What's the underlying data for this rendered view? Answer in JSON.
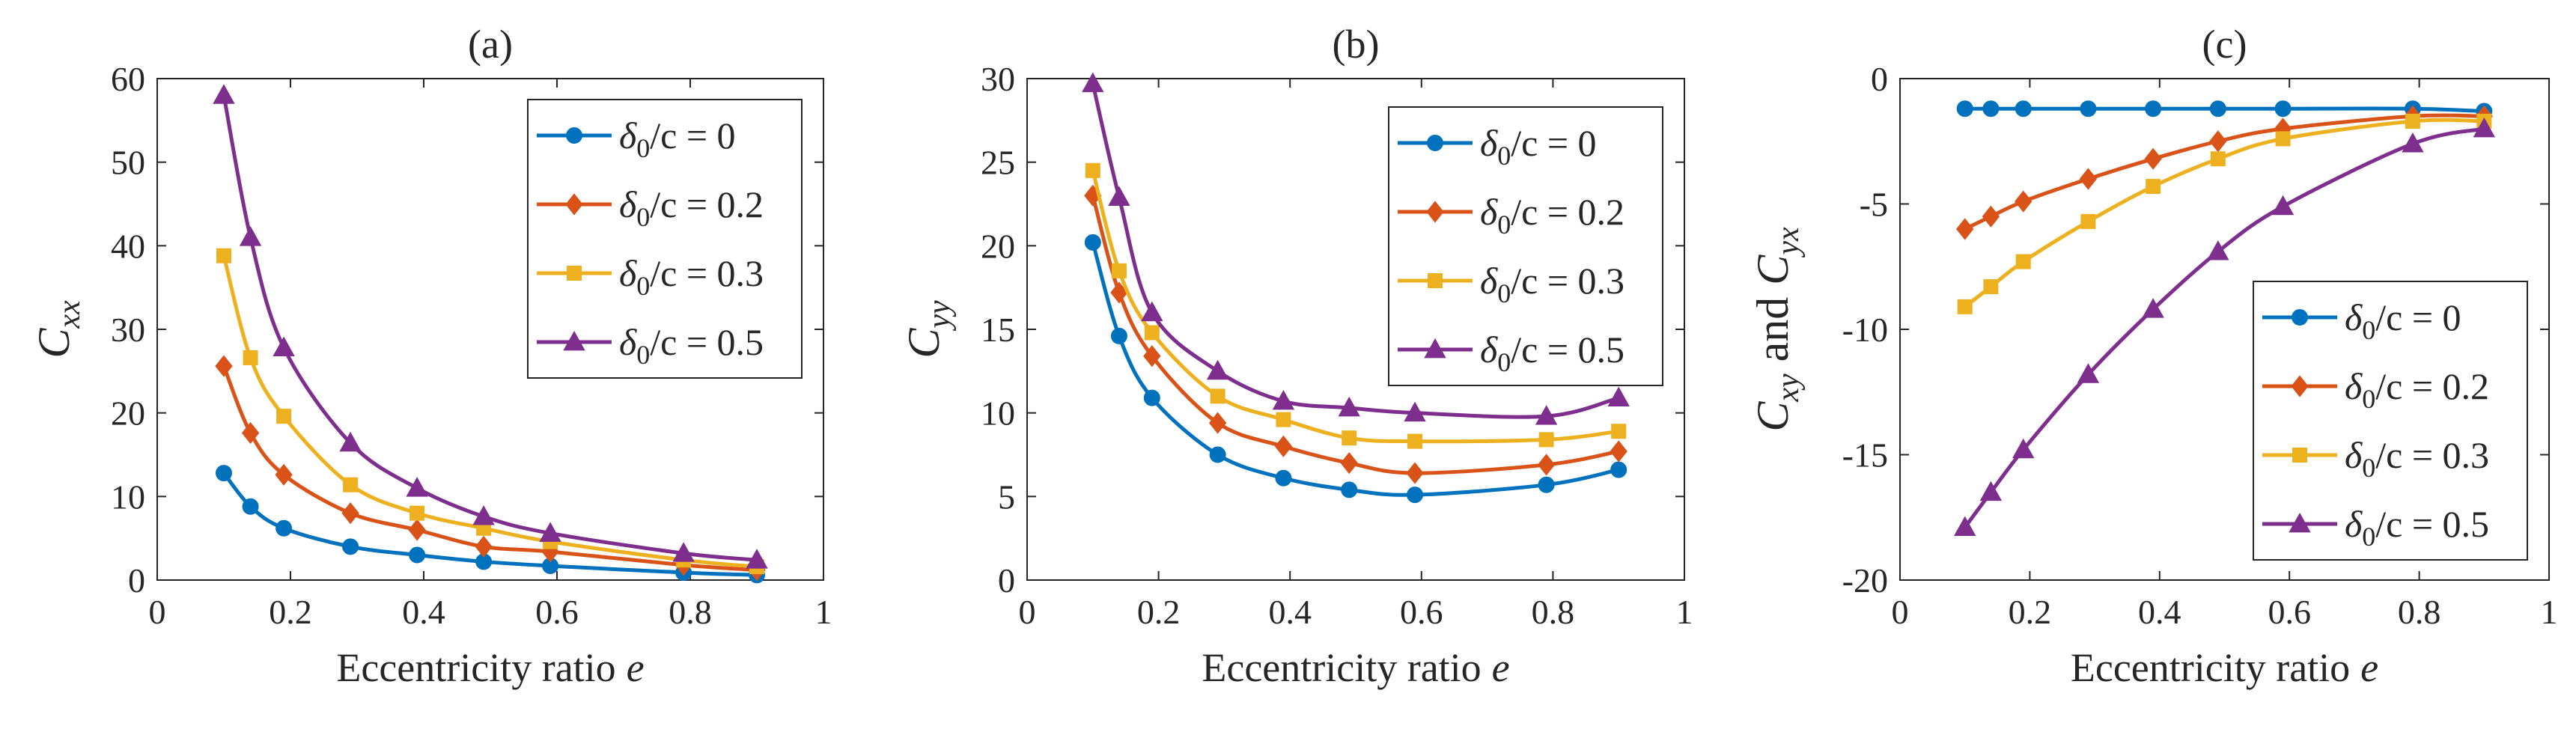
{
  "chart_data": [
    {
      "type": "line",
      "title": "(a)",
      "xlabel": "Eccentricity ratio",
      "xlabel_var": "e",
      "ylabel_main": "C",
      "ylabel_sub": "xx",
      "xlim": [
        0,
        1
      ],
      "ylim": [
        0,
        60
      ],
      "xticks": [
        0,
        0.2,
        0.4,
        0.6,
        0.8,
        1
      ],
      "xtick_labels": [
        "0",
        "0.2",
        "0.4",
        "0.6",
        "0.8",
        "1"
      ],
      "yticks": [
        0,
        10,
        20,
        30,
        40,
        50,
        60
      ],
      "ytick_labels": [
        "0",
        "10",
        "20",
        "30",
        "40",
        "50",
        "60"
      ],
      "legend_position": "top-right",
      "x": [
        0.1,
        0.14,
        0.19,
        0.29,
        0.39,
        0.49,
        0.59,
        0.79,
        0.9
      ],
      "series": [
        {
          "name": "δ0/c = 0",
          "values": [
            12.8,
            8.8,
            6.2,
            4.0,
            3.0,
            2.2,
            1.7,
            0.9,
            0.6
          ]
        },
        {
          "name": "δ0/c = 0.2",
          "values": [
            25.6,
            17.6,
            12.6,
            8.0,
            6.0,
            4.0,
            3.4,
            1.8,
            1.2
          ]
        },
        {
          "name": "δ0/c = 0.3",
          "values": [
            38.8,
            26.6,
            19.6,
            11.4,
            8.0,
            6.2,
            4.6,
            2.4,
            1.6
          ]
        },
        {
          "name": "δ0/c = 0.5",
          "values": [
            58.0,
            41.0,
            27.8,
            16.4,
            11.0,
            7.6,
            5.6,
            3.2,
            2.4
          ]
        }
      ]
    },
    {
      "type": "line",
      "title": "(b)",
      "xlabel": "Eccentricity ratio",
      "xlabel_var": "e",
      "ylabel_main": "C",
      "ylabel_sub": "yy",
      "xlim": [
        0,
        1
      ],
      "ylim": [
        0,
        30
      ],
      "xticks": [
        0,
        0.2,
        0.4,
        0.6,
        0.8,
        1
      ],
      "xtick_labels": [
        "0",
        "0.2",
        "0.4",
        "0.6",
        "0.8",
        "1"
      ],
      "yticks": [
        0,
        5,
        10,
        15,
        20,
        25,
        30
      ],
      "ytick_labels": [
        "0",
        "5",
        "10",
        "15",
        "20",
        "25",
        "30"
      ],
      "legend_position": "top-right",
      "x": [
        0.1,
        0.14,
        0.19,
        0.29,
        0.39,
        0.49,
        0.59,
        0.79,
        0.9
      ],
      "series": [
        {
          "name": "δ0/c = 0",
          "values": [
            20.2,
            14.6,
            10.9,
            7.5,
            6.1,
            5.4,
            5.1,
            5.7,
            6.6
          ]
        },
        {
          "name": "δ0/c = 0.2",
          "values": [
            23.0,
            17.2,
            13.4,
            9.4,
            8.0,
            7.0,
            6.4,
            6.9,
            7.7
          ]
        },
        {
          "name": "δ0/c = 0.3",
          "values": [
            24.5,
            18.5,
            14.8,
            11.0,
            9.6,
            8.5,
            8.3,
            8.4,
            8.9
          ]
        },
        {
          "name": "δ0/c = 0.5",
          "values": [
            29.7,
            22.9,
            16.0,
            12.5,
            10.7,
            10.3,
            10.0,
            9.8,
            10.9
          ]
        }
      ]
    },
    {
      "type": "line",
      "title": "(c)",
      "xlabel": "Eccentricity ratio",
      "xlabel_var": "e",
      "ylabel_main": "C",
      "ylabel_sub": "xy",
      "ylabel_and": "and",
      "ylabel_main2": "C",
      "ylabel_sub2": "yx",
      "xlim": [
        0,
        1
      ],
      "ylim": [
        -20,
        0
      ],
      "xticks": [
        0,
        0.2,
        0.4,
        0.6,
        0.8,
        1
      ],
      "xtick_labels": [
        "0",
        "0.2",
        "0.4",
        "0.6",
        "0.8",
        "1"
      ],
      "yticks": [
        -20,
        -15,
        -10,
        -5,
        0
      ],
      "ytick_labels": [
        "-20",
        "-15",
        "-10",
        "-5",
        "0"
      ],
      "legend_position": "bottom-right",
      "x": [
        0.1,
        0.14,
        0.19,
        0.29,
        0.39,
        0.49,
        0.59,
        0.79,
        0.9
      ],
      "series": [
        {
          "name": "δ0/c = 0",
          "values": [
            -1.2,
            -1.2,
            -1.2,
            -1.2,
            -1.2,
            -1.2,
            -1.2,
            -1.2,
            -1.3
          ]
        },
        {
          "name": "δ0/c = 0.2",
          "values": [
            -6.0,
            -5.5,
            -4.9,
            -4.0,
            -3.2,
            -2.5,
            -2.0,
            -1.5,
            -1.5
          ]
        },
        {
          "name": "δ0/c = 0.3",
          "values": [
            -9.1,
            -8.3,
            -7.3,
            -5.7,
            -4.3,
            -3.2,
            -2.4,
            -1.7,
            -1.7
          ]
        },
        {
          "name": "δ0/c = 0.5",
          "values": [
            -17.9,
            -16.5,
            -14.8,
            -11.8,
            -9.2,
            -6.9,
            -5.1,
            -2.6,
            -2.0
          ]
        }
      ]
    }
  ],
  "legend_labels": {
    "symbol": "δ",
    "subscript": "0",
    "suffix": "/c = ",
    "values": [
      "0",
      "0.2",
      "0.3",
      "0.5"
    ]
  },
  "colors": {
    "series": [
      "#0072BD",
      "#D95319",
      "#EDB120",
      "#7E2F8E"
    ],
    "axis": "#262626"
  },
  "markers": [
    "circle",
    "diamond",
    "square",
    "triangle"
  ]
}
